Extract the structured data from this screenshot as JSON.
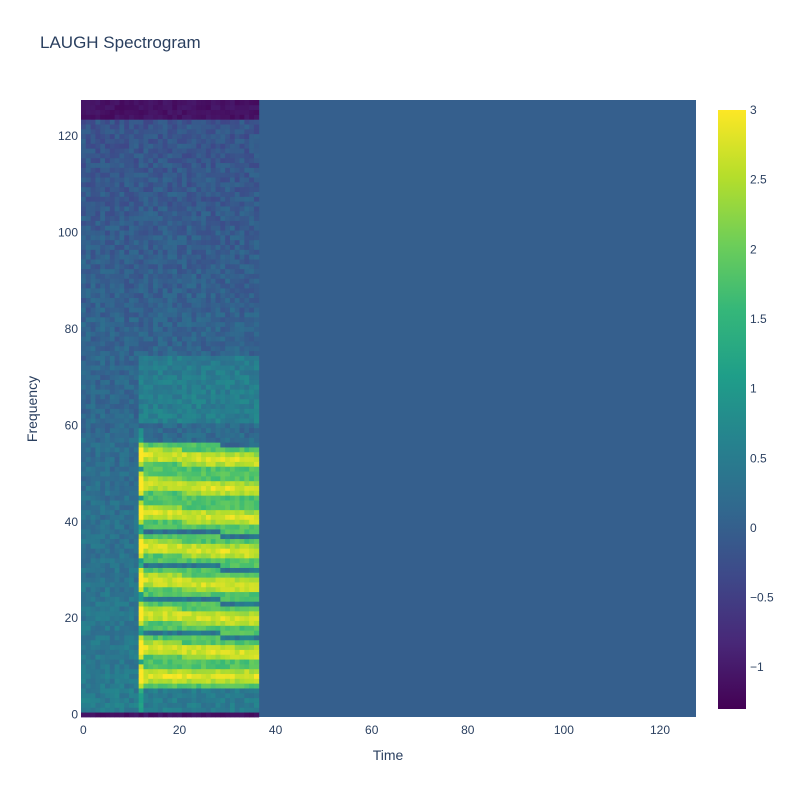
{
  "chart_data": {
    "type": "heatmap",
    "title": "LAUGH Spectrogram",
    "xlabel": "Time",
    "ylabel": "Frequency",
    "xlim": [
      0,
      127
    ],
    "ylim": [
      0,
      127
    ],
    "x_ticks": [
      0,
      20,
      40,
      60,
      80,
      100,
      120
    ],
    "y_ticks": [
      0,
      20,
      40,
      60,
      80,
      100,
      120
    ],
    "grid": "x: 0–127 time frames, y: 0–127 frequency bins",
    "colorscale": "Viridis",
    "colorscale_stops": [
      "#440154",
      "#482878",
      "#3e4989",
      "#31688e",
      "#26828e",
      "#1f9e89",
      "#35b779",
      "#6ece58",
      "#b5de2b",
      "#fde725"
    ],
    "zmin": -1.3,
    "zmax": 3,
    "colorbar_ticks": [
      "3",
      "2.5",
      "2",
      "1.5",
      "1",
      "0.5",
      "0",
      "−0.5",
      "−1"
    ],
    "colorbar_tick_values": [
      3,
      2.5,
      2,
      1.5,
      1,
      0.5,
      0,
      -0.5,
      -1
    ],
    "signal_time_range": [
      0,
      36
    ],
    "padding_value": 0,
    "harmonic_bands_frequency": [
      8,
      14,
      21,
      28,
      35,
      42,
      48,
      54
    ],
    "harmonic_band_time_range": [
      12,
      36
    ]
  }
}
